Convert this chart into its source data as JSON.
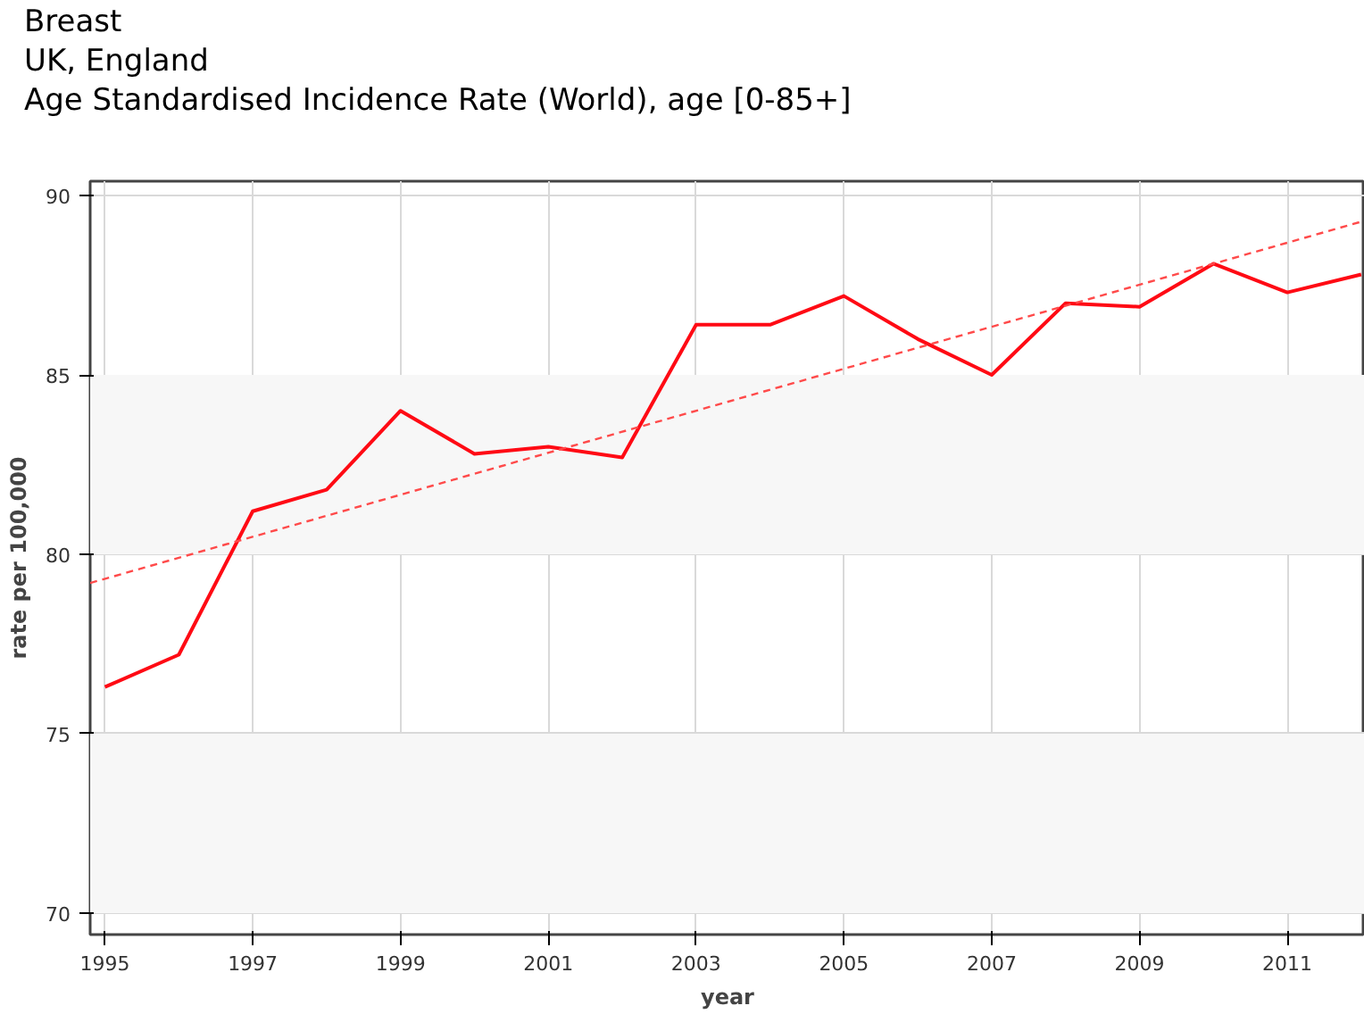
{
  "chart_data": {
    "type": "line",
    "title": "Breast",
    "subtitle": "UK, England",
    "annotations": [
      "Age Standardised Incidence Rate (World), age [0-85+]"
    ],
    "xlabel": "year",
    "ylabel": "rate per 100,000",
    "xlim": [
      1994.8,
      2012.05
    ],
    "ylim": [
      69.4,
      90.4
    ],
    "xticks": [
      1995,
      1997,
      1999,
      2001,
      2003,
      2005,
      2007,
      2009,
      2011
    ],
    "yticks": [
      70,
      75,
      80,
      85,
      90
    ],
    "grid": true,
    "line_style": "solid",
    "marker": "none",
    "bands": [
      {
        "axis": "y",
        "from": 70,
        "to": 75,
        "color": "#f7f7f7"
      },
      {
        "axis": "y",
        "from": 80,
        "to": 85,
        "color": "#f7f7f7"
      }
    ],
    "series": [
      {
        "color": "#ff0a14",
        "x": [
          1995,
          1996,
          1997,
          1998,
          1999,
          2000,
          2001,
          2002,
          2003,
          2004,
          2005,
          2006,
          2007,
          2008,
          2009,
          2010,
          2011,
          2012
        ],
        "values": [
          76.3,
          77.2,
          81.2,
          81.8,
          84.0,
          82.8,
          83.0,
          82.7,
          86.4,
          86.4,
          87.2,
          86.0,
          85.0,
          87.0,
          86.9,
          88.1,
          87.3,
          87.8
        ]
      },
      {
        "color": "#ff4a4a",
        "line_style": "dashed",
        "x": [
          1994.8,
          2012.05
        ],
        "values": [
          79.2,
          89.3
        ]
      }
    ]
  }
}
